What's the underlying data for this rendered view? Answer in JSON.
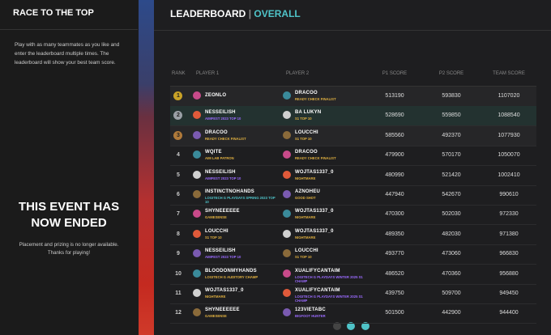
{
  "sidebar": {
    "title": "RACE TO THE TOP",
    "intro": "Play with as many teammates as you like and enter the leaderboard multiple times. The leaderboard will show your best team score.",
    "status": "THIS EVENT HAS NOW ENDED",
    "note": "Placement and prizing is no longer available. Thanks for playing!"
  },
  "header": {
    "title": "LEADERBOARD",
    "separator": "|",
    "view": "OVERALL"
  },
  "table": {
    "columns": [
      "RANK",
      "PLAYER 1",
      "PLAYER 2",
      "P1 SCORE",
      "P2 SCORE",
      "TEAM SCORE"
    ],
    "rows": [
      {
        "rank": 1,
        "p1": {
          "name": "ZEONLO"
        },
        "p2": {
          "name": "DRACOO",
          "tag": "READY CHECK FINALIST",
          "color": "#e0b040"
        },
        "p1_score": 513190,
        "p2_score": 593830,
        "team_score": 1107020
      },
      {
        "rank": 2,
        "p1": {
          "name": "NESSEILISH",
          "tag": "AIMFEST 2023 TOP 10",
          "color": "#9b6bff"
        },
        "p2": {
          "name": "BA LUKYN",
          "tag": "S1 TOP 10",
          "color": "#e0b040"
        },
        "p1_score": 528690,
        "p2_score": 559850,
        "team_score": 1088540
      },
      {
        "rank": 3,
        "p1": {
          "name": "DRACOO",
          "tag": "READY CHECK FINALIST",
          "color": "#e0b040"
        },
        "p2": {
          "name": "LOUCCHI",
          "tag": "S1 TOP 10",
          "color": "#e0b040"
        },
        "p1_score": 585560,
        "p2_score": 492370,
        "team_score": 1077930
      },
      {
        "rank": 4,
        "p1": {
          "name": "WQITE",
          "tag": "AIM LAB PATRON",
          "color": "#e0b040"
        },
        "p2": {
          "name": "DRACOO",
          "tag": "READY CHECK FINALIST",
          "color": "#e0b040"
        },
        "p1_score": 479900,
        "p2_score": 570170,
        "team_score": 1050070
      },
      {
        "rank": 5,
        "p1": {
          "name": "NESSEILISH",
          "tag": "AIMFEST 2023 TOP 10",
          "color": "#9b6bff"
        },
        "p2": {
          "name": "WOJTAS1337_0",
          "tag": "NIGHTMARE",
          "color": "#e0b040"
        },
        "p1_score": 480990,
        "p2_score": 521420,
        "team_score": 1002410
      },
      {
        "rank": 6,
        "p1": {
          "name": "INSTINCTNOHANDS",
          "tag": "LOGITECH G PLAYDAYS SPRING 2023 TOP 10",
          "color": "#4fc3c8"
        },
        "p2": {
          "name": "AZNOHEU",
          "tag": "GOOD SHOT",
          "color": "#e0b040"
        },
        "p1_score": 447940,
        "p2_score": 542670,
        "team_score": 990610
      },
      {
        "rank": 7,
        "p1": {
          "name": "SHYNEEEEEE",
          "tag": "GAMESENSE",
          "color": "#e0b040"
        },
        "p2": {
          "name": "WOJTAS1337_0",
          "tag": "NIGHTMARE",
          "color": "#e0b040"
        },
        "p1_score": 470300,
        "p2_score": 502030,
        "team_score": 972330
      },
      {
        "rank": 8,
        "p1": {
          "name": "LOUCCHI",
          "tag": "S1 TOP 10",
          "color": "#e0b040"
        },
        "p2": {
          "name": "WOJTAS1337_0",
          "tag": "NIGHTMARE",
          "color": "#e0b040"
        },
        "p1_score": 489350,
        "p2_score": 482030,
        "team_score": 971380
      },
      {
        "rank": 9,
        "p1": {
          "name": "NESSEILISH",
          "tag": "AIMFEST 2023 TOP 10",
          "color": "#9b6bff"
        },
        "p2": {
          "name": "LOUCCHI",
          "tag": "S1 TOP 10",
          "color": "#e0b040"
        },
        "p1_score": 493770,
        "p2_score": 473060,
        "team_score": 966830
      },
      {
        "rank": 10,
        "p1": {
          "name": "BLOODONMYHANDS",
          "tag": "LOGITECH G AUDITORY CHAMP",
          "color": "#e0b040"
        },
        "p2": {
          "name": "XUALIFYCANTAIM",
          "tag": "LOGITECH G PLAYDAYS WINTER 2025 S1 CHAMP",
          "color": "#9b6bff"
        },
        "p1_score": 486520,
        "p2_score": 470360,
        "team_score": 956880
      },
      {
        "rank": 11,
        "p1": {
          "name": "WOJTAS1337_0",
          "tag": "NIGHTMARE",
          "color": "#e0b040"
        },
        "p2": {
          "name": "XUALIFYCANTAIM",
          "tag": "LOGITECH G PLAYDAYS WINTER 2025 S1 CHAMP",
          "color": "#9b6bff"
        },
        "p1_score": 439750,
        "p2_score": 509700,
        "team_score": 949450
      },
      {
        "rank": 12,
        "p1": {
          "name": "SHYNEEEEEE",
          "tag": "GAMESENSE",
          "color": "#e0b040"
        },
        "p2": {
          "name": "123VIETABC",
          "tag": "BIGFOOT HUNTER",
          "color": "#9b6bff"
        },
        "p1_score": 501500,
        "p2_score": 442900,
        "team_score": 944400
      }
    ]
  }
}
